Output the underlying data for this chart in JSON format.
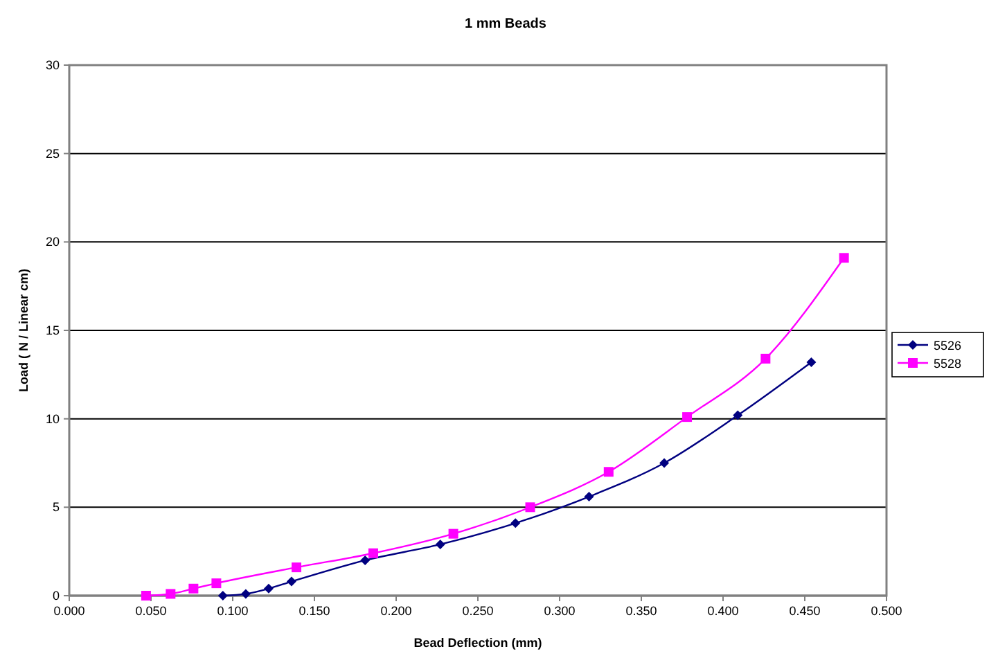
{
  "chart_data": {
    "type": "line",
    "title": "1 mm Beads",
    "xlabel": "Bead Deflection (mm)",
    "ylabel": "Load ( N / Linear cm)",
    "xlim": [
      0,
      0.5
    ],
    "xticks": [
      {
        "value": 0,
        "label": "0.000"
      },
      {
        "value": 0.05,
        "label": "0.050"
      },
      {
        "value": 0.1,
        "label": "0.100"
      },
      {
        "value": 0.15,
        "label": "0.150"
      },
      {
        "value": 0.2,
        "label": "0.200"
      },
      {
        "value": 0.25,
        "label": "0.250"
      },
      {
        "value": 0.3,
        "label": "0.300"
      },
      {
        "value": 0.35,
        "label": "0.350"
      },
      {
        "value": 0.4,
        "label": "0.400"
      },
      {
        "value": 0.45,
        "label": "0.450"
      },
      {
        "value": 0.5,
        "label": "0.500"
      }
    ],
    "ylim": [
      0,
      30
    ],
    "yticks": [
      0,
      5,
      10,
      15,
      20,
      25,
      30
    ],
    "grid": "y",
    "legend": "right",
    "series": [
      {
        "name": "5526",
        "color": "#000080",
        "marker": "diamond",
        "x": [
          0.094,
          0.108,
          0.122,
          0.136,
          0.181,
          0.227,
          0.273,
          0.318,
          0.364,
          0.409,
          0.454
        ],
        "values": [
          0,
          0.1,
          0.4,
          0.8,
          2.0,
          2.9,
          4.1,
          5.6,
          7.5,
          10.2,
          13.2
        ]
      },
      {
        "name": "5528",
        "color": "#ff00ff",
        "marker": "square",
        "x": [
          0.047,
          0.062,
          0.076,
          0.09,
          0.139,
          0.186,
          0.235,
          0.282,
          0.33,
          0.378,
          0.426,
          0.474
        ],
        "values": [
          0,
          0.1,
          0.4,
          0.7,
          1.6,
          2.4,
          3.5,
          5.0,
          7.0,
          10.1,
          13.4,
          19.1
        ]
      }
    ]
  }
}
